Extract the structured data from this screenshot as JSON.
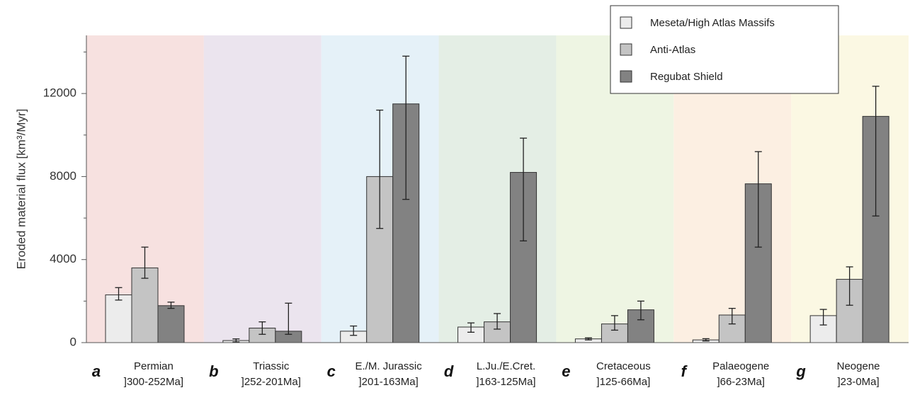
{
  "chart_data": {
    "type": "bar",
    "ylabel": "Eroded material flux [km³/Myr]",
    "ylim": [
      0,
      14800
    ],
    "yticks": [
      0,
      4000,
      8000,
      12000
    ],
    "grid": false,
    "legend_position": "top-right",
    "periods": [
      {
        "letter": "a",
        "name": "Permian",
        "range": "]300-252Ma]",
        "color": "#f7e1e0"
      },
      {
        "letter": "b",
        "name": "Triassic",
        "range": "]252-201Ma]",
        "color": "#ebe4ee"
      },
      {
        "letter": "c",
        "name": "E./M. Jurassic",
        "range": "]201-163Ma]",
        "color": "#e5f1f8"
      },
      {
        "letter": "d",
        "name": "L.Ju./E.Cret.",
        "range": "]163-125Ma]",
        "color": "#e4eee5"
      },
      {
        "letter": "e",
        "name": "Cretaceous",
        "range": "]125-66Ma]",
        "color": "#eef5e3"
      },
      {
        "letter": "f",
        "name": "Palaeogene",
        "range": "]66-23Ma]",
        "color": "#fcefe2"
      },
      {
        "letter": "g",
        "name": "Neogene",
        "range": "]23-0Ma]",
        "color": "#fbf8e3"
      }
    ],
    "series": [
      {
        "name": "Meseta/High Atlas Massifs",
        "color": "#ececec",
        "values": [
          2300,
          100,
          550,
          750,
          180,
          130,
          1300
        ],
        "err_low": [
          2050,
          30,
          350,
          500,
          130,
          80,
          850
        ],
        "err_high": [
          2650,
          180,
          800,
          950,
          230,
          190,
          1600
        ]
      },
      {
        "name": "Anti-Atlas",
        "color": "#c4c4c4",
        "values": [
          3600,
          700,
          8000,
          1000,
          900,
          1330,
          3050
        ],
        "err_low": [
          3100,
          400,
          5500,
          650,
          600,
          900,
          1800
        ],
        "err_high": [
          4600,
          1000,
          11200,
          1400,
          1300,
          1650,
          3650
        ]
      },
      {
        "name": "Regubat Shield",
        "color": "#828282",
        "values": [
          1780,
          550,
          11500,
          8200,
          1580,
          7650,
          10900
        ],
        "err_low": [
          1650,
          400,
          6900,
          4900,
          1100,
          4600,
          6100
        ],
        "err_high": [
          1950,
          1900,
          13800,
          9850,
          2000,
          9200,
          12350
        ]
      }
    ]
  }
}
